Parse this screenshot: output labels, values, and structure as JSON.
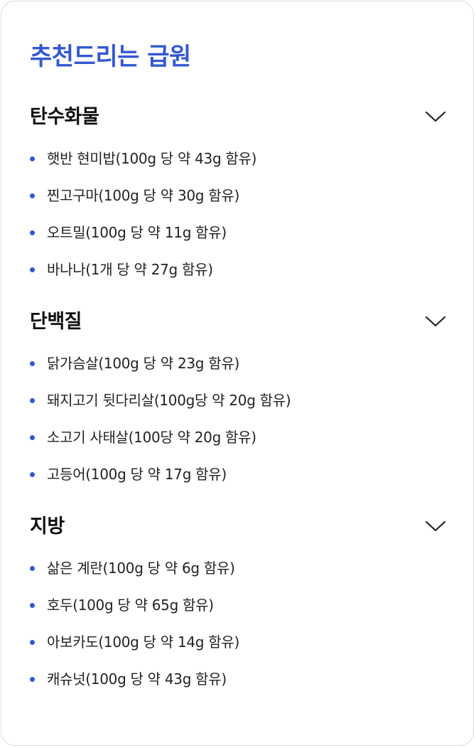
{
  "title": "추천드리는 급원",
  "sections": [
    {
      "title": "탄수화물",
      "toggle_icon": "chevron-down-icon",
      "items": [
        "햇반 현미밥(100g 당 약 43g 함유)",
        "찐고구마(100g 당 약 30g 함유)",
        "오트밀(100g 당 약 11g 함유)",
        "바나나(1개 당 약 27g 함유)"
      ]
    },
    {
      "title": "단백질",
      "toggle_icon": "chevron-down-icon",
      "items": [
        "닭가슴살(100g 당 약 23g 함유)",
        "돼지고기 뒷다리살(100g당 약 20g 함유)",
        "소고기 사태살(100당 약 20g 함유)",
        "고등어(100g 당 약 17g 함유)"
      ]
    },
    {
      "title": "지방",
      "toggle_icon": "chevron-down-icon",
      "items": [
        "삶은 계란(100g 당 약 6g 함유)",
        "호두(100g 당 약 65g 함유)",
        "아보카도(100g 당 약 14g 함유)",
        "캐슈넛(100g 당 약 43g 함유)"
      ]
    }
  ],
  "colors": {
    "accent": "#3558d0",
    "text": "#222222",
    "heading": "#111111",
    "border": "#dcdcdc"
  }
}
